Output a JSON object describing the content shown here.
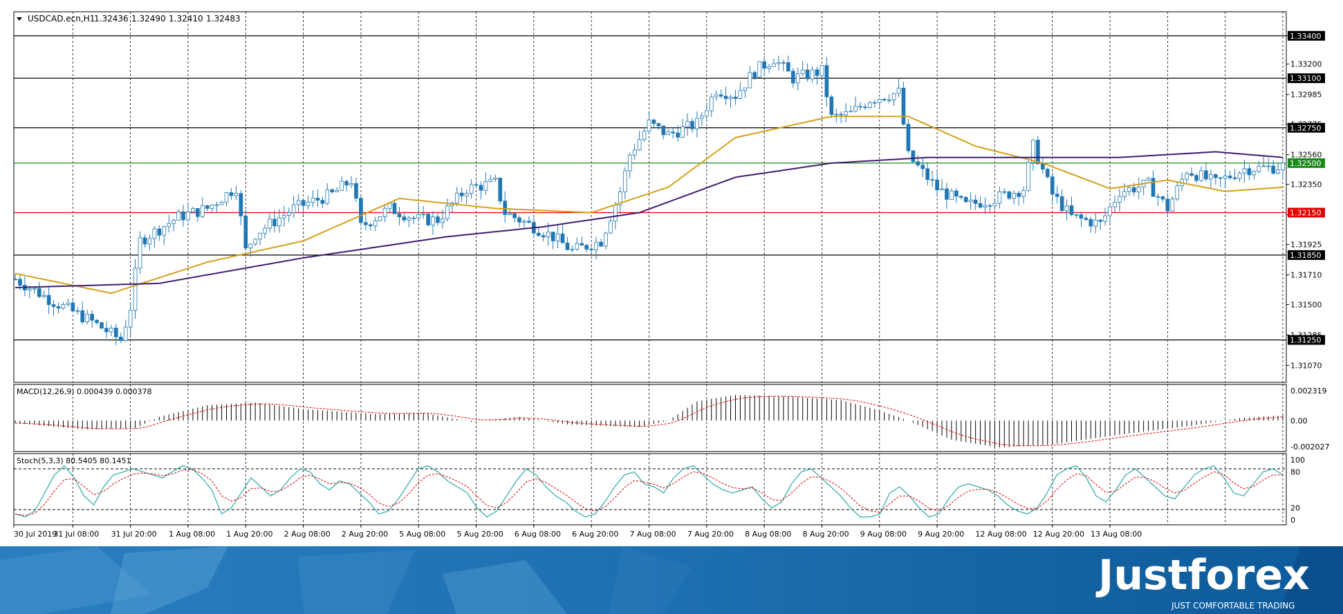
{
  "chart_data": [
    {
      "type": "candlestick",
      "symbol_header": {
        "symbol": "USDCAD.ecn,H1",
        "open": "1.32436",
        "high": "1.32490",
        "low": "1.32410",
        "close": "1.32483"
      },
      "ylim": [
        1.3095,
        1.3357
      ],
      "price_axis_ticks": [
        "1.33400",
        "1.33200",
        "1.32985",
        "1.32775",
        "1.32560",
        "1.32350",
        "1.32135",
        "1.31925",
        "1.31710",
        "1.31500",
        "1.31285",
        "1.31070"
      ],
      "x_tick_labels": [
        "30 Jul 2019",
        "31 Jul 08:00",
        "31 Jul 20:00",
        "1 Aug 08:00",
        "1 Aug 20:00",
        "2 Aug 08:00",
        "2 Aug 20:00",
        "5 Aug 08:00",
        "5 Aug 20:00",
        "6 Aug 08:00",
        "6 Aug 20:00",
        "7 Aug 08:00",
        "7 Aug 20:00",
        "8 Aug 08:00",
        "8 Aug 20:00",
        "9 Aug 08:00",
        "9 Aug 20:00",
        "12 Aug 08:00",
        "12 Aug 20:00",
        "13 Aug 08:00"
      ],
      "horizontal_levels": [
        {
          "value": 1.334,
          "label": "1.33400",
          "color": "#000000"
        },
        {
          "value": 1.331,
          "label": "1.33100",
          "color": "#000000"
        },
        {
          "value": 1.3275,
          "label": "1.32750",
          "color": "#000000"
        },
        {
          "value": 1.325,
          "label": "1.32500",
          "color": "#1a8a1a"
        },
        {
          "value": 1.3215,
          "label": "1.32150",
          "color": "#e00000"
        },
        {
          "value": 1.3185,
          "label": "1.31850",
          "color": "#000000"
        },
        {
          "value": 1.3125,
          "label": "1.31250",
          "color": "#000000"
        }
      ],
      "close_path": [
        [
          0,
          1.3168
        ],
        [
          8,
          1.3152
        ],
        [
          16,
          1.3138
        ],
        [
          22,
          1.3125
        ],
        [
          24,
          1.3148
        ],
        [
          26,
          1.3195
        ],
        [
          34,
          1.3212
        ],
        [
          40,
          1.3218
        ],
        [
          46,
          1.3233
        ],
        [
          48,
          1.3188
        ],
        [
          50,
          1.32
        ],
        [
          58,
          1.3218
        ],
        [
          66,
          1.3228
        ],
        [
          70,
          1.3238
        ],
        [
          72,
          1.3205
        ],
        [
          78,
          1.3218
        ],
        [
          84,
          1.321
        ],
        [
          88,
          1.321
        ],
        [
          94,
          1.3232
        ],
        [
          100,
          1.3236
        ],
        [
          102,
          1.3215
        ],
        [
          108,
          1.3205
        ],
        [
          112,
          1.3198
        ],
        [
          116,
          1.3188
        ],
        [
          122,
          1.3195
        ],
        [
          126,
          1.323
        ],
        [
          128,
          1.3256
        ],
        [
          132,
          1.3278
        ],
        [
          136,
          1.327
        ],
        [
          142,
          1.3278
        ],
        [
          146,
          1.3302
        ],
        [
          150,
          1.3298
        ],
        [
          154,
          1.3315
        ],
        [
          158,
          1.3324
        ],
        [
          162,
          1.331
        ],
        [
          168,
          1.3315
        ],
        [
          170,
          1.3282
        ],
        [
          174,
          1.3285
        ],
        [
          178,
          1.3295
        ],
        [
          184,
          1.33
        ],
        [
          186,
          1.3255
        ],
        [
          192,
          1.3232
        ],
        [
          198,
          1.322
        ],
        [
          204,
          1.3225
        ],
        [
          210,
          1.3232
        ],
        [
          212,
          1.3262
        ],
        [
          216,
          1.3228
        ],
        [
          220,
          1.3212
        ],
        [
          226,
          1.3207
        ],
        [
          230,
          1.323
        ],
        [
          236,
          1.3235
        ],
        [
          240,
          1.3218
        ],
        [
          244,
          1.3245
        ],
        [
          250,
          1.3236
        ],
        [
          256,
          1.3246
        ],
        [
          262,
          1.3247
        ],
        [
          264,
          1.3248
        ]
      ],
      "ma_fast": [
        [
          0,
          1.3172
        ],
        [
          20,
          1.3158
        ],
        [
          40,
          1.318
        ],
        [
          60,
          1.3195
        ],
        [
          80,
          1.3225
        ],
        [
          100,
          1.3218
        ],
        [
          120,
          1.3215
        ],
        [
          136,
          1.3233
        ],
        [
          150,
          1.3268
        ],
        [
          170,
          1.3283
        ],
        [
          186,
          1.3283
        ],
        [
          200,
          1.3262
        ],
        [
          214,
          1.325
        ],
        [
          228,
          1.3232
        ],
        [
          240,
          1.3238
        ],
        [
          252,
          1.323
        ],
        [
          264,
          1.3233
        ]
      ],
      "ma_slow": [
        [
          0,
          1.3162
        ],
        [
          30,
          1.3165
        ],
        [
          60,
          1.3183
        ],
        [
          90,
          1.3198
        ],
        [
          110,
          1.3205
        ],
        [
          130,
          1.3215
        ],
        [
          150,
          1.324
        ],
        [
          170,
          1.325
        ],
        [
          190,
          1.3254
        ],
        [
          210,
          1.3254
        ],
        [
          230,
          1.3254
        ],
        [
          250,
          1.3258
        ],
        [
          264,
          1.3254
        ]
      ],
      "colors": {
        "up": "#ffffff",
        "down": "#1f77b4",
        "wick": "#1f77b4",
        "ma_fast": "#d4a017",
        "ma_slow": "#3d1d6e"
      }
    },
    {
      "type": "histogram",
      "header": "MACD(12,26,9) 0.000439 0.000378",
      "axis_ticks": [
        "0.002319",
        "0.00",
        "-0.002027"
      ],
      "ylim": [
        -0.0023,
        0.0026
      ],
      "macd_path": [
        [
          0,
          -0.0002
        ],
        [
          15,
          -0.0007
        ],
        [
          25,
          -0.0006
        ],
        [
          30,
          0.0003
        ],
        [
          40,
          0.0012
        ],
        [
          50,
          0.0014
        ],
        [
          60,
          0.0009
        ],
        [
          75,
          0.0005
        ],
        [
          85,
          0.0006
        ],
        [
          95,
          -0.0001
        ],
        [
          105,
          0.0003
        ],
        [
          115,
          -0.0003
        ],
        [
          130,
          -0.0005
        ],
        [
          136,
          0.0
        ],
        [
          142,
          0.0015
        ],
        [
          150,
          0.002
        ],
        [
          160,
          0.0019
        ],
        [
          172,
          0.0016
        ],
        [
          180,
          0.0008
        ],
        [
          186,
          0.0
        ],
        [
          195,
          -0.0015
        ],
        [
          205,
          -0.0021
        ],
        [
          215,
          -0.0019
        ],
        [
          230,
          -0.0011
        ],
        [
          245,
          -0.0004
        ],
        [
          255,
          0.0002
        ],
        [
          264,
          0.0004
        ]
      ],
      "colors": {
        "histogram": "#000000",
        "signal": "#e00000"
      }
    },
    {
      "type": "line",
      "header": "Stoch(5,3,3) 80.5405 80.1451",
      "axis_ticks": [
        "100",
        "80",
        "20",
        "0"
      ],
      "ylim": [
        0,
        100
      ],
      "k_values": [
        10,
        5,
        15,
        45,
        75,
        90,
        70,
        40,
        25,
        55,
        75,
        80,
        85,
        80,
        75,
        70,
        80,
        90,
        85,
        70,
        50,
        10,
        20,
        45,
        70,
        55,
        40,
        50,
        70,
        85,
        80,
        60,
        50,
        65,
        60,
        45,
        30,
        10,
        15,
        35,
        60,
        85,
        90,
        80,
        65,
        55,
        45,
        20,
        5,
        15,
        40,
        65,
        85,
        75,
        55,
        40,
        30,
        15,
        5,
        10,
        30,
        55,
        75,
        80,
        60,
        55,
        45,
        70,
        85,
        90,
        75,
        60,
        50,
        45,
        50,
        55,
        35,
        20,
        30,
        60,
        80,
        85,
        70,
        55,
        40,
        20,
        5,
        5,
        10,
        45,
        55,
        40,
        20,
        5,
        10,
        35,
        55,
        60,
        55,
        50,
        40,
        25,
        15,
        10,
        20,
        45,
        75,
        85,
        90,
        70,
        40,
        30,
        50,
        75,
        85,
        70,
        55,
        40,
        35,
        55,
        75,
        85,
        90,
        70,
        45,
        40,
        60,
        80,
        85,
        75
      ],
      "colors": {
        "k": "#2aa8a8",
        "d": "#e00000"
      }
    }
  ],
  "logo": {
    "brand": "Justforex",
    "tagline": "JUST COMFORTABLE TRADING"
  },
  "colors": {
    "banner": "#1c6fb0",
    "banner_dark": "#0d4f8a"
  }
}
